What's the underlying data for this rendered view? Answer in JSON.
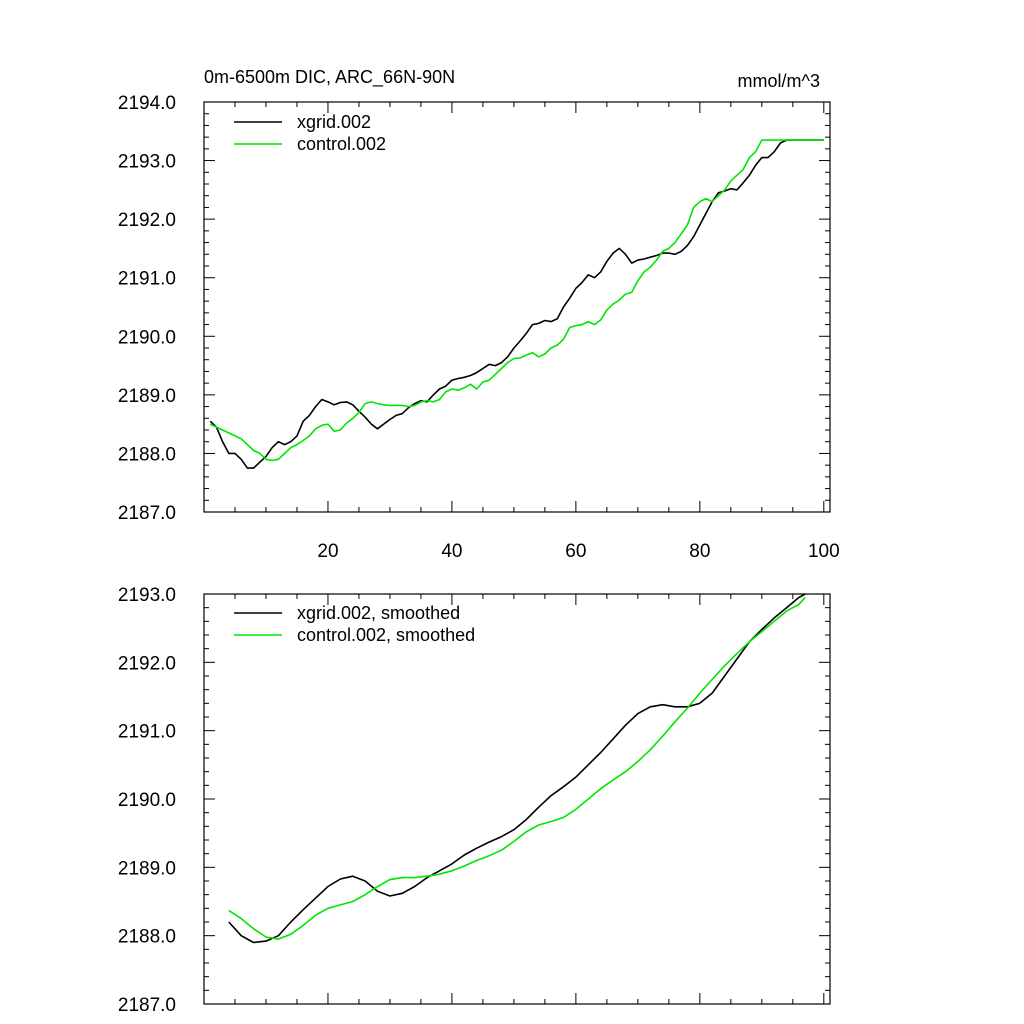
{
  "figure": {
    "title": "0m-6500m DIC, ARC_66N-90N",
    "units": "mmol/m^3"
  },
  "colors": {
    "xgrid": "#000000",
    "control": "#00e600"
  },
  "chart_data": [
    {
      "type": "line",
      "title": "0m-6500m DIC, ARC_66N-90N",
      "units_label": "mmol/m^3",
      "xlim": [
        0,
        101
      ],
      "ylim": [
        2187.0,
        2194.0
      ],
      "xticks": [
        20,
        40,
        60,
        80,
        100
      ],
      "xtick_labels": [
        "20",
        "40",
        "60",
        "80",
        "100"
      ],
      "yticks": [
        2187.0,
        2188.0,
        2189.0,
        2190.0,
        2191.0,
        2192.0,
        2193.0,
        2194.0
      ],
      "ytick_labels": [
        "2187.0",
        "2188.0",
        "2189.0",
        "2190.0",
        "2191.0",
        "2192.0",
        "2193.0",
        "2194.0"
      ],
      "legend_position": "top-left",
      "series": [
        {
          "name": "xgrid.002",
          "color": "#000000",
          "x": [
            1,
            2,
            3,
            4,
            5,
            6,
            7,
            8,
            9,
            10,
            11,
            12,
            13,
            14,
            15,
            16,
            17,
            18,
            19,
            20,
            21,
            22,
            23,
            24,
            25,
            26,
            27,
            28,
            29,
            30,
            31,
            32,
            33,
            34,
            35,
            36,
            37,
            38,
            39,
            40,
            41,
            42,
            43,
            44,
            45,
            46,
            47,
            48,
            49,
            50,
            51,
            52,
            53,
            54,
            55,
            56,
            57,
            58,
            59,
            60,
            61,
            62,
            63,
            64,
            65,
            66,
            67,
            68,
            69,
            70,
            71,
            72,
            73,
            74,
            75,
            76,
            77,
            78,
            79,
            80,
            81,
            82,
            83,
            84,
            85,
            86,
            87,
            88,
            89,
            90,
            91,
            92,
            93,
            94,
            95,
            96,
            97,
            98,
            99,
            100
          ],
          "values": [
            2188.55,
            2188.45,
            2188.2,
            2188.0,
            2188.0,
            2187.9,
            2187.75,
            2187.75,
            2187.85,
            2187.95,
            2188.1,
            2188.2,
            2188.15,
            2188.2,
            2188.3,
            2188.55,
            2188.65,
            2188.8,
            2188.92,
            2188.88,
            2188.83,
            2188.87,
            2188.88,
            2188.83,
            2188.72,
            2188.62,
            2188.5,
            2188.42,
            2188.5,
            2188.58,
            2188.65,
            2188.68,
            2188.78,
            2188.85,
            2188.9,
            2188.88,
            2189.0,
            2189.1,
            2189.15,
            2189.25,
            2189.28,
            2189.3,
            2189.33,
            2189.38,
            2189.45,
            2189.52,
            2189.5,
            2189.55,
            2189.65,
            2189.8,
            2189.92,
            2190.05,
            2190.2,
            2190.22,
            2190.27,
            2190.25,
            2190.3,
            2190.5,
            2190.65,
            2190.82,
            2190.92,
            2191.05,
            2191.0,
            2191.1,
            2191.28,
            2191.42,
            2191.5,
            2191.4,
            2191.25,
            2191.3,
            2191.32,
            2191.35,
            2191.38,
            2191.42,
            2191.42,
            2191.4,
            2191.45,
            2191.55,
            2191.7,
            2191.9,
            2192.1,
            2192.3,
            2192.45,
            2192.48,
            2192.52,
            2192.5,
            2192.62,
            2192.75,
            2192.92,
            2193.05,
            2193.05,
            2193.15,
            2193.3,
            2193.35,
            2193.35,
            2193.35,
            2193.35,
            2193.35,
            2193.35,
            2193.35
          ]
        },
        {
          "name": "control.002",
          "color": "#00e600",
          "x": [
            1,
            2,
            3,
            4,
            5,
            6,
            7,
            8,
            9,
            10,
            11,
            12,
            13,
            14,
            15,
            16,
            17,
            18,
            19,
            20,
            21,
            22,
            23,
            24,
            25,
            26,
            27,
            28,
            29,
            30,
            31,
            32,
            33,
            34,
            35,
            36,
            37,
            38,
            39,
            40,
            41,
            42,
            43,
            44,
            45,
            46,
            47,
            48,
            49,
            50,
            51,
            52,
            53,
            54,
            55,
            56,
            57,
            58,
            59,
            60,
            61,
            62,
            63,
            64,
            65,
            66,
            67,
            68,
            69,
            70,
            71,
            72,
            73,
            74,
            75,
            76,
            77,
            78,
            79,
            80,
            81,
            82,
            83,
            84,
            85,
            86,
            87,
            88,
            89,
            90,
            91,
            92,
            93,
            94,
            95,
            96,
            97,
            98,
            99,
            100
          ],
          "values": [
            2188.5,
            2188.45,
            2188.4,
            2188.35,
            2188.3,
            2188.25,
            2188.15,
            2188.05,
            2188.0,
            2187.9,
            2187.88,
            2187.9,
            2188.0,
            2188.1,
            2188.15,
            2188.22,
            2188.3,
            2188.42,
            2188.48,
            2188.5,
            2188.38,
            2188.4,
            2188.52,
            2188.6,
            2188.7,
            2188.85,
            2188.88,
            2188.85,
            2188.83,
            2188.82,
            2188.82,
            2188.82,
            2188.8,
            2188.82,
            2188.88,
            2188.9,
            2188.88,
            2188.92,
            2189.05,
            2189.1,
            2189.08,
            2189.12,
            2189.18,
            2189.1,
            2189.22,
            2189.25,
            2189.35,
            2189.45,
            2189.55,
            2189.62,
            2189.63,
            2189.68,
            2189.72,
            2189.65,
            2189.7,
            2189.8,
            2189.85,
            2189.95,
            2190.15,
            2190.18,
            2190.2,
            2190.25,
            2190.2,
            2190.28,
            2190.45,
            2190.55,
            2190.62,
            2190.72,
            2190.75,
            2190.95,
            2191.1,
            2191.18,
            2191.3,
            2191.45,
            2191.5,
            2191.6,
            2191.75,
            2191.9,
            2192.2,
            2192.3,
            2192.35,
            2192.3,
            2192.4,
            2192.5,
            2192.65,
            2192.75,
            2192.85,
            2193.05,
            2193.15,
            2193.35,
            2193.35,
            2193.35,
            2193.35,
            2193.35,
            2193.35,
            2193.35,
            2193.35,
            2193.35,
            2193.35,
            2193.35
          ]
        }
      ]
    },
    {
      "type": "line",
      "title": "",
      "xlim": [
        0,
        101
      ],
      "ylim": [
        2187.0,
        2193.0
      ],
      "xticks": [
        20,
        40,
        60,
        80,
        100
      ],
      "xtick_labels": [],
      "yticks": [
        2187.0,
        2188.0,
        2189.0,
        2190.0,
        2191.0,
        2192.0,
        2193.0
      ],
      "ytick_labels": [
        "2187.0",
        "2188.0",
        "2189.0",
        "2190.0",
        "2191.0",
        "2192.0",
        "2193.0"
      ],
      "legend_position": "top-left",
      "series": [
        {
          "name": "xgrid.002, smoothed",
          "color": "#000000",
          "x": [
            4,
            6,
            8,
            10,
            12,
            14,
            16,
            18,
            20,
            22,
            24,
            26,
            28,
            30,
            32,
            34,
            36,
            38,
            40,
            42,
            44,
            46,
            48,
            50,
            52,
            54,
            56,
            58,
            60,
            62,
            64,
            66,
            68,
            70,
            72,
            74,
            76,
            78,
            80,
            82,
            84,
            86,
            88,
            90,
            92,
            94,
            96,
            97
          ],
          "values": [
            2188.2,
            2188.0,
            2187.9,
            2187.92,
            2188.0,
            2188.2,
            2188.38,
            2188.55,
            2188.72,
            2188.83,
            2188.87,
            2188.8,
            2188.65,
            2188.58,
            2188.62,
            2188.72,
            2188.85,
            2188.95,
            2189.05,
            2189.18,
            2189.28,
            2189.37,
            2189.45,
            2189.55,
            2189.7,
            2189.88,
            2190.05,
            2190.18,
            2190.32,
            2190.5,
            2190.68,
            2190.88,
            2191.08,
            2191.25,
            2191.35,
            2191.38,
            2191.35,
            2191.35,
            2191.4,
            2191.55,
            2191.8,
            2192.05,
            2192.3,
            2192.48,
            2192.65,
            2192.8,
            2192.95,
            2193.0
          ]
        },
        {
          "name": "control.002, smoothed",
          "color": "#00e600",
          "x": [
            4,
            6,
            8,
            10,
            12,
            14,
            16,
            18,
            20,
            22,
            24,
            26,
            28,
            30,
            32,
            34,
            36,
            38,
            40,
            42,
            44,
            46,
            48,
            50,
            52,
            54,
            56,
            58,
            60,
            62,
            64,
            66,
            68,
            70,
            72,
            74,
            76,
            78,
            80,
            82,
            84,
            86,
            88,
            90,
            92,
            94,
            96,
            97
          ],
          "values": [
            2188.37,
            2188.25,
            2188.1,
            2187.98,
            2187.95,
            2188.02,
            2188.15,
            2188.3,
            2188.4,
            2188.45,
            2188.5,
            2188.6,
            2188.72,
            2188.82,
            2188.85,
            2188.85,
            2188.87,
            2188.9,
            2188.95,
            2189.02,
            2189.1,
            2189.17,
            2189.25,
            2189.38,
            2189.52,
            2189.62,
            2189.67,
            2189.73,
            2189.85,
            2190.0,
            2190.15,
            2190.28,
            2190.4,
            2190.55,
            2190.72,
            2190.92,
            2191.13,
            2191.33,
            2191.55,
            2191.75,
            2191.95,
            2192.13,
            2192.3,
            2192.45,
            2192.6,
            2192.75,
            2192.85,
            2192.95
          ]
        }
      ]
    }
  ]
}
